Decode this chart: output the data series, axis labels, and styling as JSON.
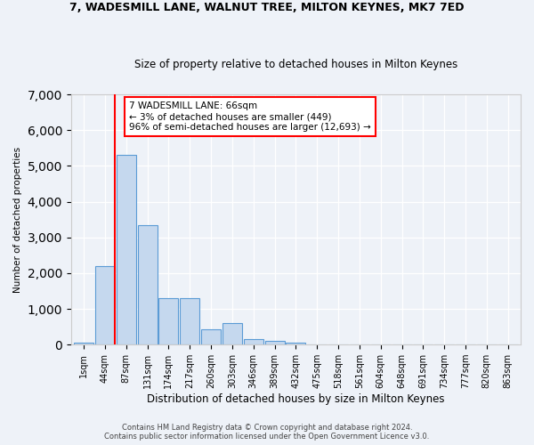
{
  "title1": "7, WADESMILL LANE, WALNUT TREE, MILTON KEYNES, MK7 7ED",
  "title2": "Size of property relative to detached houses in Milton Keynes",
  "xlabel": "Distribution of detached houses by size in Milton Keynes",
  "ylabel": "Number of detached properties",
  "bar_labels": [
    "1sqm",
    "44sqm",
    "87sqm",
    "131sqm",
    "174sqm",
    "217sqm",
    "260sqm",
    "303sqm",
    "346sqm",
    "389sqm",
    "432sqm",
    "475sqm",
    "518sqm",
    "561sqm",
    "604sqm",
    "648sqm",
    "691sqm",
    "734sqm",
    "777sqm",
    "820sqm",
    "863sqm"
  ],
  "bar_values": [
    50,
    2200,
    5300,
    3350,
    1300,
    1300,
    430,
    600,
    150,
    100,
    50,
    0,
    0,
    0,
    0,
    0,
    0,
    0,
    0,
    0,
    0
  ],
  "bar_color": "#c5d8ee",
  "bar_edge_color": "#5b9bd5",
  "annotation_text": "7 WADESMILL LANE: 66sqm\n← 3% of detached houses are smaller (449)\n96% of semi-detached houses are larger (12,693) →",
  "annotation_box_color": "white",
  "annotation_box_edge": "red",
  "red_line_bin": 1,
  "ylim": [
    0,
    7000
  ],
  "yticks": [
    0,
    1000,
    2000,
    3000,
    4000,
    5000,
    6000,
    7000
  ],
  "footer1": "Contains HM Land Registry data © Crown copyright and database right 2024.",
  "footer2": "Contains public sector information licensed under the Open Government Licence v3.0.",
  "bg_color": "#eef2f8"
}
